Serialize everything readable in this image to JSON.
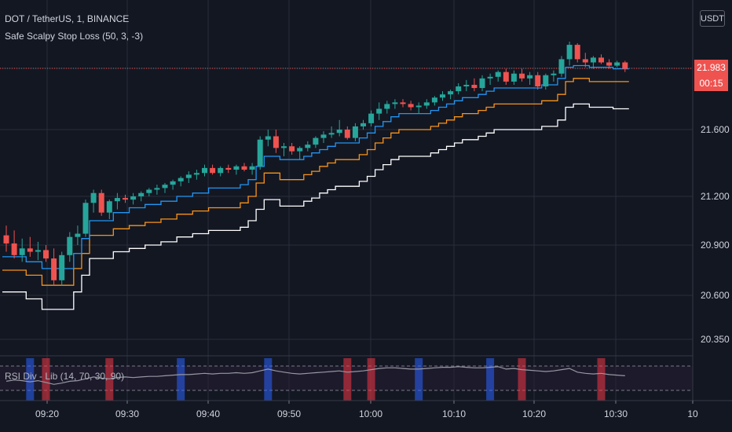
{
  "header": {
    "symbol_line": "DOT / TetherUS, 1, BINANCE",
    "indicator_line": "Safe Scalpy Stop Loss (50, 3, -3)",
    "currency_badge": "USDT"
  },
  "price_scale": {
    "last_price": "21.983",
    "countdown": "00:15",
    "ticks": [
      "21.600",
      "21.200",
      "20.900",
      "20.600",
      "20.350"
    ]
  },
  "time_axis": {
    "ticks": [
      "09:20",
      "09:30",
      "09:40",
      "09:50",
      "10:00",
      "10:10",
      "10:20",
      "10:30",
      "10"
    ]
  },
  "rsi_pane": {
    "label": "RSI Div - Lib (14, 70, 30, 90)"
  },
  "colors": {
    "background": "#131722",
    "up": "#26a69a",
    "down": "#ef5350",
    "stop_blue": "#2196f3",
    "stop_orange": "#f7931a",
    "stop_white": "#ffffff",
    "rsi_bull": "#2962ff",
    "rsi_bear": "#f23645"
  },
  "chart_data": {
    "type": "candlestick",
    "candles": [
      [
        20.96,
        21.02,
        20.86,
        20.91
      ],
      [
        20.91,
        20.99,
        20.82,
        20.84
      ],
      [
        20.84,
        20.94,
        20.8,
        20.88
      ],
      [
        20.88,
        20.95,
        20.83,
        20.86
      ],
      [
        20.86,
        20.92,
        20.81,
        20.87
      ],
      [
        20.87,
        20.9,
        20.8,
        20.82
      ],
      [
        20.82,
        20.88,
        20.66,
        20.69
      ],
      [
        20.69,
        20.86,
        20.66,
        20.84
      ],
      [
        20.84,
        20.98,
        20.8,
        20.95
      ],
      [
        20.95,
        21.02,
        20.9,
        20.97
      ],
      [
        20.97,
        21.18,
        20.95,
        21.16
      ],
      [
        21.16,
        21.24,
        21.1,
        21.22
      ],
      [
        21.22,
        21.24,
        21.08,
        21.1
      ],
      [
        21.1,
        21.18,
        21.06,
        21.17
      ],
      [
        21.17,
        21.22,
        21.12,
        21.19
      ],
      [
        21.19,
        21.21,
        21.16,
        21.18
      ],
      [
        21.18,
        21.22,
        21.15,
        21.2
      ],
      [
        21.2,
        21.23,
        21.17,
        21.22
      ],
      [
        21.22,
        21.25,
        21.2,
        21.24
      ],
      [
        21.24,
        21.27,
        21.21,
        21.25
      ],
      [
        21.25,
        21.28,
        21.22,
        21.27
      ],
      [
        21.27,
        21.3,
        21.24,
        21.29
      ],
      [
        21.29,
        21.32,
        21.26,
        21.31
      ],
      [
        21.31,
        21.35,
        21.28,
        21.33
      ],
      [
        21.33,
        21.36,
        21.3,
        21.34
      ],
      [
        21.34,
        21.39,
        21.32,
        21.37
      ],
      [
        21.37,
        21.39,
        21.33,
        21.34
      ],
      [
        21.34,
        21.38,
        21.32,
        21.37
      ],
      [
        21.37,
        21.39,
        21.34,
        21.36
      ],
      [
        21.36,
        21.39,
        21.33,
        21.38
      ],
      [
        21.38,
        21.4,
        21.35,
        21.36
      ],
      [
        21.36,
        21.4,
        21.33,
        21.38
      ],
      [
        21.38,
        21.56,
        21.36,
        21.54
      ],
      [
        21.54,
        21.6,
        21.5,
        21.56
      ],
      [
        21.56,
        21.6,
        21.46,
        21.49
      ],
      [
        21.49,
        21.52,
        21.44,
        21.5
      ],
      [
        21.5,
        21.52,
        21.45,
        21.47
      ],
      [
        21.47,
        21.5,
        21.42,
        21.49
      ],
      [
        21.49,
        21.53,
        21.47,
        21.51
      ],
      [
        21.51,
        21.56,
        21.49,
        21.55
      ],
      [
        21.55,
        21.59,
        21.52,
        21.57
      ],
      [
        21.57,
        21.62,
        21.55,
        21.58
      ],
      [
        21.58,
        21.66,
        21.56,
        21.6
      ],
      [
        21.6,
        21.62,
        21.54,
        21.55
      ],
      [
        21.55,
        21.64,
        21.53,
        21.62
      ],
      [
        21.62,
        21.66,
        21.6,
        21.64
      ],
      [
        21.64,
        21.72,
        21.62,
        21.7
      ],
      [
        21.7,
        21.77,
        21.66,
        21.73
      ],
      [
        21.73,
        21.78,
        21.7,
        21.76
      ],
      [
        21.76,
        21.79,
        21.73,
        21.77
      ],
      [
        21.77,
        21.79,
        21.74,
        21.76
      ],
      [
        21.76,
        21.78,
        21.72,
        21.74
      ],
      [
        21.74,
        21.77,
        21.7,
        21.75
      ],
      [
        21.75,
        21.79,
        21.73,
        21.77
      ],
      [
        21.77,
        21.81,
        21.75,
        21.8
      ],
      [
        21.8,
        21.84,
        21.78,
        21.82
      ],
      [
        21.82,
        21.85,
        21.79,
        21.84
      ],
      [
        21.84,
        21.89,
        21.82,
        21.87
      ],
      [
        21.87,
        21.91,
        21.84,
        21.88
      ],
      [
        21.88,
        21.92,
        21.84,
        21.86
      ],
      [
        21.86,
        21.94,
        21.84,
        21.92
      ],
      [
        21.92,
        21.95,
        21.88,
        21.93
      ],
      [
        21.93,
        21.97,
        21.9,
        21.96
      ],
      [
        21.96,
        21.98,
        21.88,
        21.9
      ],
      [
        21.9,
        21.97,
        21.88,
        21.95
      ],
      [
        21.95,
        21.98,
        21.9,
        21.92
      ],
      [
        21.92,
        21.96,
        21.88,
        21.94
      ],
      [
        21.94,
        21.96,
        21.85,
        21.87
      ],
      [
        21.87,
        21.95,
        21.85,
        21.94
      ],
      [
        21.94,
        21.97,
        21.9,
        21.95
      ],
      [
        21.95,
        22.06,
        21.93,
        22.04
      ],
      [
        22.04,
        22.15,
        22.0,
        22.13
      ],
      [
        22.13,
        22.14,
        22.02,
        22.04
      ],
      [
        22.04,
        22.08,
        21.99,
        22.02
      ],
      [
        22.02,
        22.06,
        21.98,
        22.05
      ],
      [
        22.05,
        22.07,
        22.01,
        22.02
      ],
      [
        22.02,
        22.04,
        21.98,
        22.0
      ],
      [
        22.0,
        22.03,
        21.99,
        22.02
      ],
      [
        22.02,
        22.03,
        21.96,
        21.98
      ]
    ],
    "stop_lines": {
      "blue": [
        20.83,
        20.83,
        20.83,
        20.8,
        20.8,
        20.76,
        20.76,
        20.76,
        20.76,
        20.85,
        20.94,
        21.05,
        21.05,
        21.05,
        21.1,
        21.1,
        21.13,
        21.13,
        21.15,
        21.15,
        21.17,
        21.17,
        21.2,
        21.2,
        21.22,
        21.22,
        21.25,
        21.25,
        21.25,
        21.25,
        21.27,
        21.3,
        21.38,
        21.44,
        21.44,
        21.42,
        21.42,
        21.42,
        21.44,
        21.46,
        21.48,
        21.5,
        21.52,
        21.52,
        21.52,
        21.55,
        21.58,
        21.62,
        21.65,
        21.68,
        21.7,
        21.7,
        21.7,
        21.7,
        21.72,
        21.74,
        21.76,
        21.78,
        21.8,
        21.8,
        21.82,
        21.84,
        21.86,
        21.86,
        21.86,
        21.86,
        21.86,
        21.86,
        21.88,
        21.88,
        21.92,
        21.99,
        22.0,
        22.0,
        21.99,
        21.99,
        21.99,
        21.98,
        21.98
      ],
      "orange": [
        20.75,
        20.75,
        20.75,
        20.72,
        20.72,
        20.66,
        20.66,
        20.66,
        20.66,
        20.76,
        20.85,
        20.96,
        20.96,
        20.96,
        21.0,
        21.0,
        21.02,
        21.02,
        21.04,
        21.04,
        21.06,
        21.06,
        21.09,
        21.09,
        21.11,
        21.11,
        21.13,
        21.13,
        21.13,
        21.13,
        21.16,
        21.2,
        21.28,
        21.34,
        21.34,
        21.3,
        21.3,
        21.3,
        21.33,
        21.35,
        21.38,
        21.4,
        21.42,
        21.42,
        21.42,
        21.45,
        21.48,
        21.52,
        21.55,
        21.58,
        21.6,
        21.6,
        21.6,
        21.6,
        21.62,
        21.64,
        21.66,
        21.68,
        21.7,
        21.7,
        21.72,
        21.74,
        21.76,
        21.76,
        21.76,
        21.76,
        21.76,
        21.76,
        21.78,
        21.78,
        21.82,
        21.9,
        21.92,
        21.92,
        21.9,
        21.9,
        21.9,
        21.9,
        21.9
      ],
      "white": [
        20.62,
        20.62,
        20.62,
        20.58,
        20.58,
        20.52,
        20.52,
        20.52,
        20.52,
        20.62,
        20.72,
        20.82,
        20.82,
        20.82,
        20.86,
        20.86,
        20.88,
        20.88,
        20.9,
        20.9,
        20.92,
        20.92,
        20.95,
        20.95,
        20.97,
        20.97,
        20.99,
        20.99,
        20.99,
        20.99,
        21.01,
        21.05,
        21.12,
        21.18,
        21.18,
        21.14,
        21.14,
        21.14,
        21.17,
        21.19,
        21.22,
        21.24,
        21.26,
        21.26,
        21.26,
        21.29,
        21.32,
        21.36,
        21.39,
        21.42,
        21.44,
        21.44,
        21.44,
        21.44,
        21.46,
        21.48,
        21.5,
        21.52,
        21.54,
        21.54,
        21.56,
        21.58,
        21.6,
        21.6,
        21.6,
        21.6,
        21.6,
        21.6,
        21.62,
        21.62,
        21.66,
        21.74,
        21.76,
        21.76,
        21.74,
        21.74,
        21.74,
        21.73,
        21.73
      ]
    },
    "y_range": [
      20.3,
      22.1
    ],
    "rsi": {
      "values": [
        45,
        47,
        46,
        44,
        46,
        43,
        40,
        42,
        45,
        46,
        49,
        52,
        50,
        49,
        51,
        52,
        51,
        52,
        53,
        53,
        54,
        55,
        56,
        56,
        57,
        58,
        57,
        58,
        58,
        59,
        58,
        59,
        62,
        65,
        62,
        60,
        58,
        57,
        58,
        59,
        60,
        61,
        62,
        60,
        61,
        62,
        64,
        66,
        67,
        67,
        66,
        65,
        65,
        66,
        67,
        68,
        68,
        69,
        68,
        67,
        67,
        68,
        69,
        65,
        66,
        64,
        63,
        62,
        61,
        62,
        64,
        66,
        60,
        58,
        57,
        58,
        56,
        55,
        54
      ],
      "bull_markers": [
        3,
        22,
        33,
        52,
        61
      ],
      "bear_markers": [
        5,
        13,
        43,
        46,
        65,
        75
      ]
    }
  }
}
